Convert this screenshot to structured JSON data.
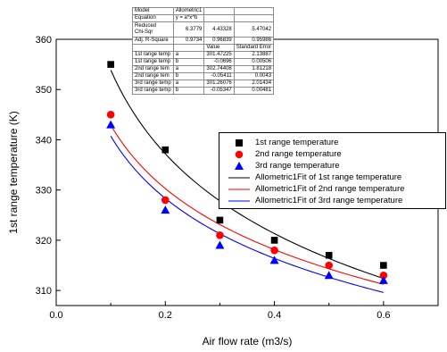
{
  "chart_data": {
    "type": "scatter",
    "xlabel": "Air flow rate (m3/s)",
    "ylabel": "1st range temperature (K)",
    "xlim": [
      0.0,
      0.7
    ],
    "ylim": [
      307,
      360
    ],
    "xticks": [
      "0.0",
      "0.2",
      "0.4",
      "0.6"
    ],
    "yticks": [
      "310",
      "320",
      "330",
      "340",
      "350",
      "360"
    ],
    "legend_position": "right",
    "series": [
      {
        "name": "1st range temperature",
        "marker": "square",
        "color": "#000000",
        "x": [
          0.1,
          0.2,
          0.3,
          0.4,
          0.5,
          0.6
        ],
        "y": [
          355,
          338,
          324,
          320,
          317,
          315
        ]
      },
      {
        "name": "2nd range temperature",
        "marker": "circle",
        "color": "#ff0000",
        "x": [
          0.1,
          0.2,
          0.3,
          0.4,
          0.5,
          0.6
        ],
        "y": [
          345,
          328,
          321,
          318,
          315,
          313
        ]
      },
      {
        "name": "3rd range temperature",
        "marker": "triangle",
        "color": "#0000ff",
        "x": [
          0.1,
          0.2,
          0.3,
          0.4,
          0.5,
          0.6
        ],
        "y": [
          343,
          326,
          319,
          316,
          313,
          312
        ]
      }
    ],
    "fits": [
      {
        "name": "Allometric1Fit of 1st range temperature",
        "color": "#000000",
        "a": 301.47225,
        "b": -0.0696
      },
      {
        "name": "Allometric1Fit of 2nd range temperature",
        "color": "#ff0000",
        "a": 302.74408,
        "b": -0.05411
      },
      {
        "name": "Allometric1Fit of 3rd range temperature",
        "color": "#0000ff",
        "a": 301.26076,
        "b": -0.05347
      }
    ],
    "stats_table": {
      "model_label": "Model",
      "model_value": "Allometric1",
      "equation_label": "Equation",
      "equation_value": "y = a*x^b",
      "chisqr_label_1": "Reduced",
      "chisqr_label_2": "Chi-Sqr",
      "chisqr_values": [
        "6.3779",
        "4.43328",
        "5.47042"
      ],
      "rsq_label": "Adj. R-Square",
      "rsq_values": [
        "0.9734",
        "0.96839",
        "0.95986"
      ],
      "col_value": "Value",
      "col_error": "Standard Error",
      "params": [
        {
          "series": "1st range temp",
          "param": "a",
          "value": "301.47225",
          "error": "2.13887"
        },
        {
          "series": "1st range temp",
          "param": "b",
          "value": "-0.0696",
          "error": "0.00506"
        },
        {
          "series": "2nd range tem",
          "param": "a",
          "value": "302.74408",
          "error": "1.81218"
        },
        {
          "series": "2nd range tem",
          "param": "b",
          "value": "-0.05411",
          "error": "0.0043"
        },
        {
          "series": "3rd range temp",
          "param": "a",
          "value": "301.26076",
          "error": "2.01434"
        },
        {
          "series": "3rd range temp",
          "param": "b",
          "value": "-0.05347",
          "error": "0.00481"
        }
      ]
    }
  }
}
